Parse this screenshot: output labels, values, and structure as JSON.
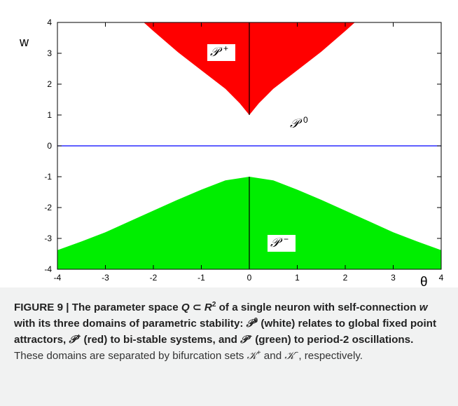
{
  "chart_data": {
    "type": "area",
    "title": "",
    "xlabel": "θ",
    "ylabel": "w",
    "xlim": [
      -4,
      4
    ],
    "ylim": [
      -4,
      4
    ],
    "x_ticks": [
      "-4",
      "-3",
      "-2",
      "-1",
      "0",
      "1",
      "2",
      "3",
      "4"
    ],
    "y_ticks": [
      "4",
      "3",
      "2",
      "1",
      "0",
      "-1",
      "-2",
      "-3",
      "-4"
    ],
    "regions": [
      {
        "name": "𝒫+",
        "color": "#ff0000",
        "boundary": {
          "theta": [
            -2.2,
            -2.0,
            -1.5,
            -1.0,
            -0.5,
            -0.2,
            0,
            0.2,
            0.5,
            1.0,
            1.5,
            2.0,
            2.2
          ],
          "w": [
            4.0,
            3.72,
            3.05,
            2.45,
            1.85,
            1.38,
            1.0,
            1.38,
            1.85,
            2.45,
            3.05,
            3.72,
            4.0
          ]
        }
      },
      {
        "name": "𝒫0",
        "color": "#ffffff"
      },
      {
        "name": "𝒫−",
        "color": "#00ee00",
        "boundary": {
          "theta": [
            -4,
            -3.5,
            -3,
            -2.5,
            -2,
            -1.5,
            -1,
            -0.5,
            0,
            0.5,
            1,
            1.5,
            2,
            2.5,
            3,
            3.5,
            4
          ],
          "w": [
            -3.38,
            -3.1,
            -2.8,
            -2.45,
            -2.1,
            -1.75,
            -1.42,
            -1.12,
            -1.0,
            -1.12,
            -1.42,
            -1.75,
            -2.1,
            -2.45,
            -2.8,
            -3.1,
            -3.38
          ]
        }
      }
    ],
    "lines": [
      {
        "description": "horizontal line w=0",
        "color": "#0000ff"
      },
      {
        "description": "vertical line θ=0 from w=1 to w=4",
        "color": "#000000"
      },
      {
        "description": "vertical line θ=0 from w=-4 to w=-1",
        "color": "#000000"
      }
    ],
    "labels": {
      "p_plus": "𝒫+",
      "p_zero": "𝒫0",
      "p_minus": "𝒫−"
    }
  },
  "caption": {
    "figure_label": "FIGURE 9 | The parameter space ",
    "q": "Q",
    "subset": " ⊂ ",
    "r": "R",
    "r_sup": "2",
    "part2": " of a single neuron with self-connection ",
    "w": "w",
    "part3": " with its three domains of parametric stability: ",
    "p0": "𝒫",
    "p0_sup": "0",
    "part4": " (white) relates to global fixed point attractors, ",
    "pplus": "𝒫",
    "pplus_sup": "+",
    "part5": " (red) to bi-stable systems, and ",
    "pminus": "𝒫",
    "pminus_sup": "−",
    "part6": " (green) to period-2 oscillations.",
    "normal": " These domains are separated by bifurcation sets ",
    "kplus": "𝒦",
    "kplus_sup": "+",
    "and": " and ",
    "kminus": "𝒦",
    "kminus_sup": "−",
    "end": ", respectively."
  }
}
